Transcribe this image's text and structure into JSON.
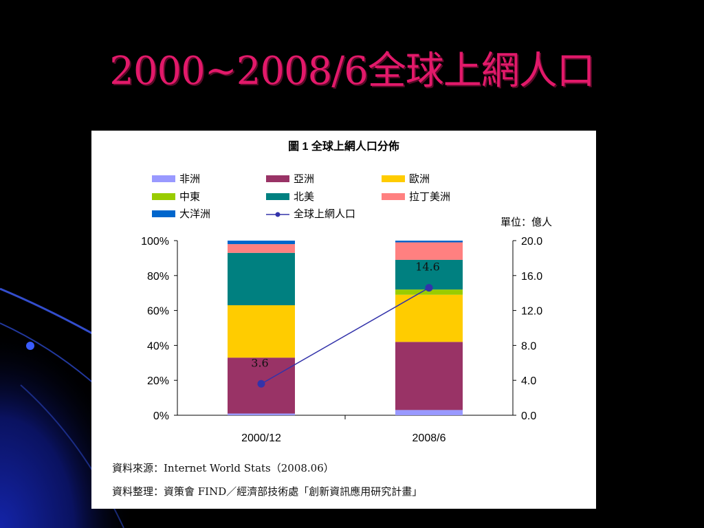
{
  "slide": {
    "title": "2000~2008/6全球上網人口",
    "title_color": "#e2196a",
    "background": "#000000"
  },
  "figure": {
    "caption": "圖 1 全球上網人口分佈",
    "unit_label": "單位：億人",
    "source_line": "資料來源：Internet World Stats（2008.06）",
    "compiler_line": "資料整理：資策會 FIND／經濟部技術處「創新資訊應用研究計畫」"
  },
  "chart_data": {
    "type": "bar",
    "stacked": "percent",
    "title": "圖 1 全球上網人口分佈",
    "categories": [
      "2000/12",
      "2008/6"
    ],
    "y_left": {
      "ticks": [
        "100%",
        "80%",
        "60%",
        "40%",
        "20%",
        "0%"
      ],
      "range": [
        0,
        100
      ]
    },
    "y_right": {
      "ticks": [
        "20.0",
        "16.0",
        "12.0",
        "8.0",
        "4.0",
        "0.0"
      ],
      "range": [
        0,
        20
      ],
      "unit": "單位：億人"
    },
    "series": [
      {
        "name": "非洲",
        "color": "#9999ff",
        "values": [
          1,
          3
        ]
      },
      {
        "name": "亞洲",
        "color": "#993366",
        "values": [
          32,
          39
        ]
      },
      {
        "name": "歐洲",
        "color": "#ffcc00",
        "values": [
          30,
          27
        ]
      },
      {
        "name": "中東",
        "color": "#99cc00",
        "values": [
          0,
          3
        ]
      },
      {
        "name": "北美",
        "color": "#008080",
        "values": [
          30,
          17
        ]
      },
      {
        "name": "拉丁美洲",
        "color": "#ff8080",
        "values": [
          5,
          10
        ]
      },
      {
        "name": "大洋洲",
        "color": "#0066cc",
        "values": [
          2,
          1
        ]
      }
    ],
    "line": {
      "name": "全球上網人口",
      "color": "#3333aa",
      "values": [
        3.6,
        14.6
      ],
      "labels": [
        "3.6",
        "14.6"
      ]
    },
    "legend_position": "top"
  }
}
